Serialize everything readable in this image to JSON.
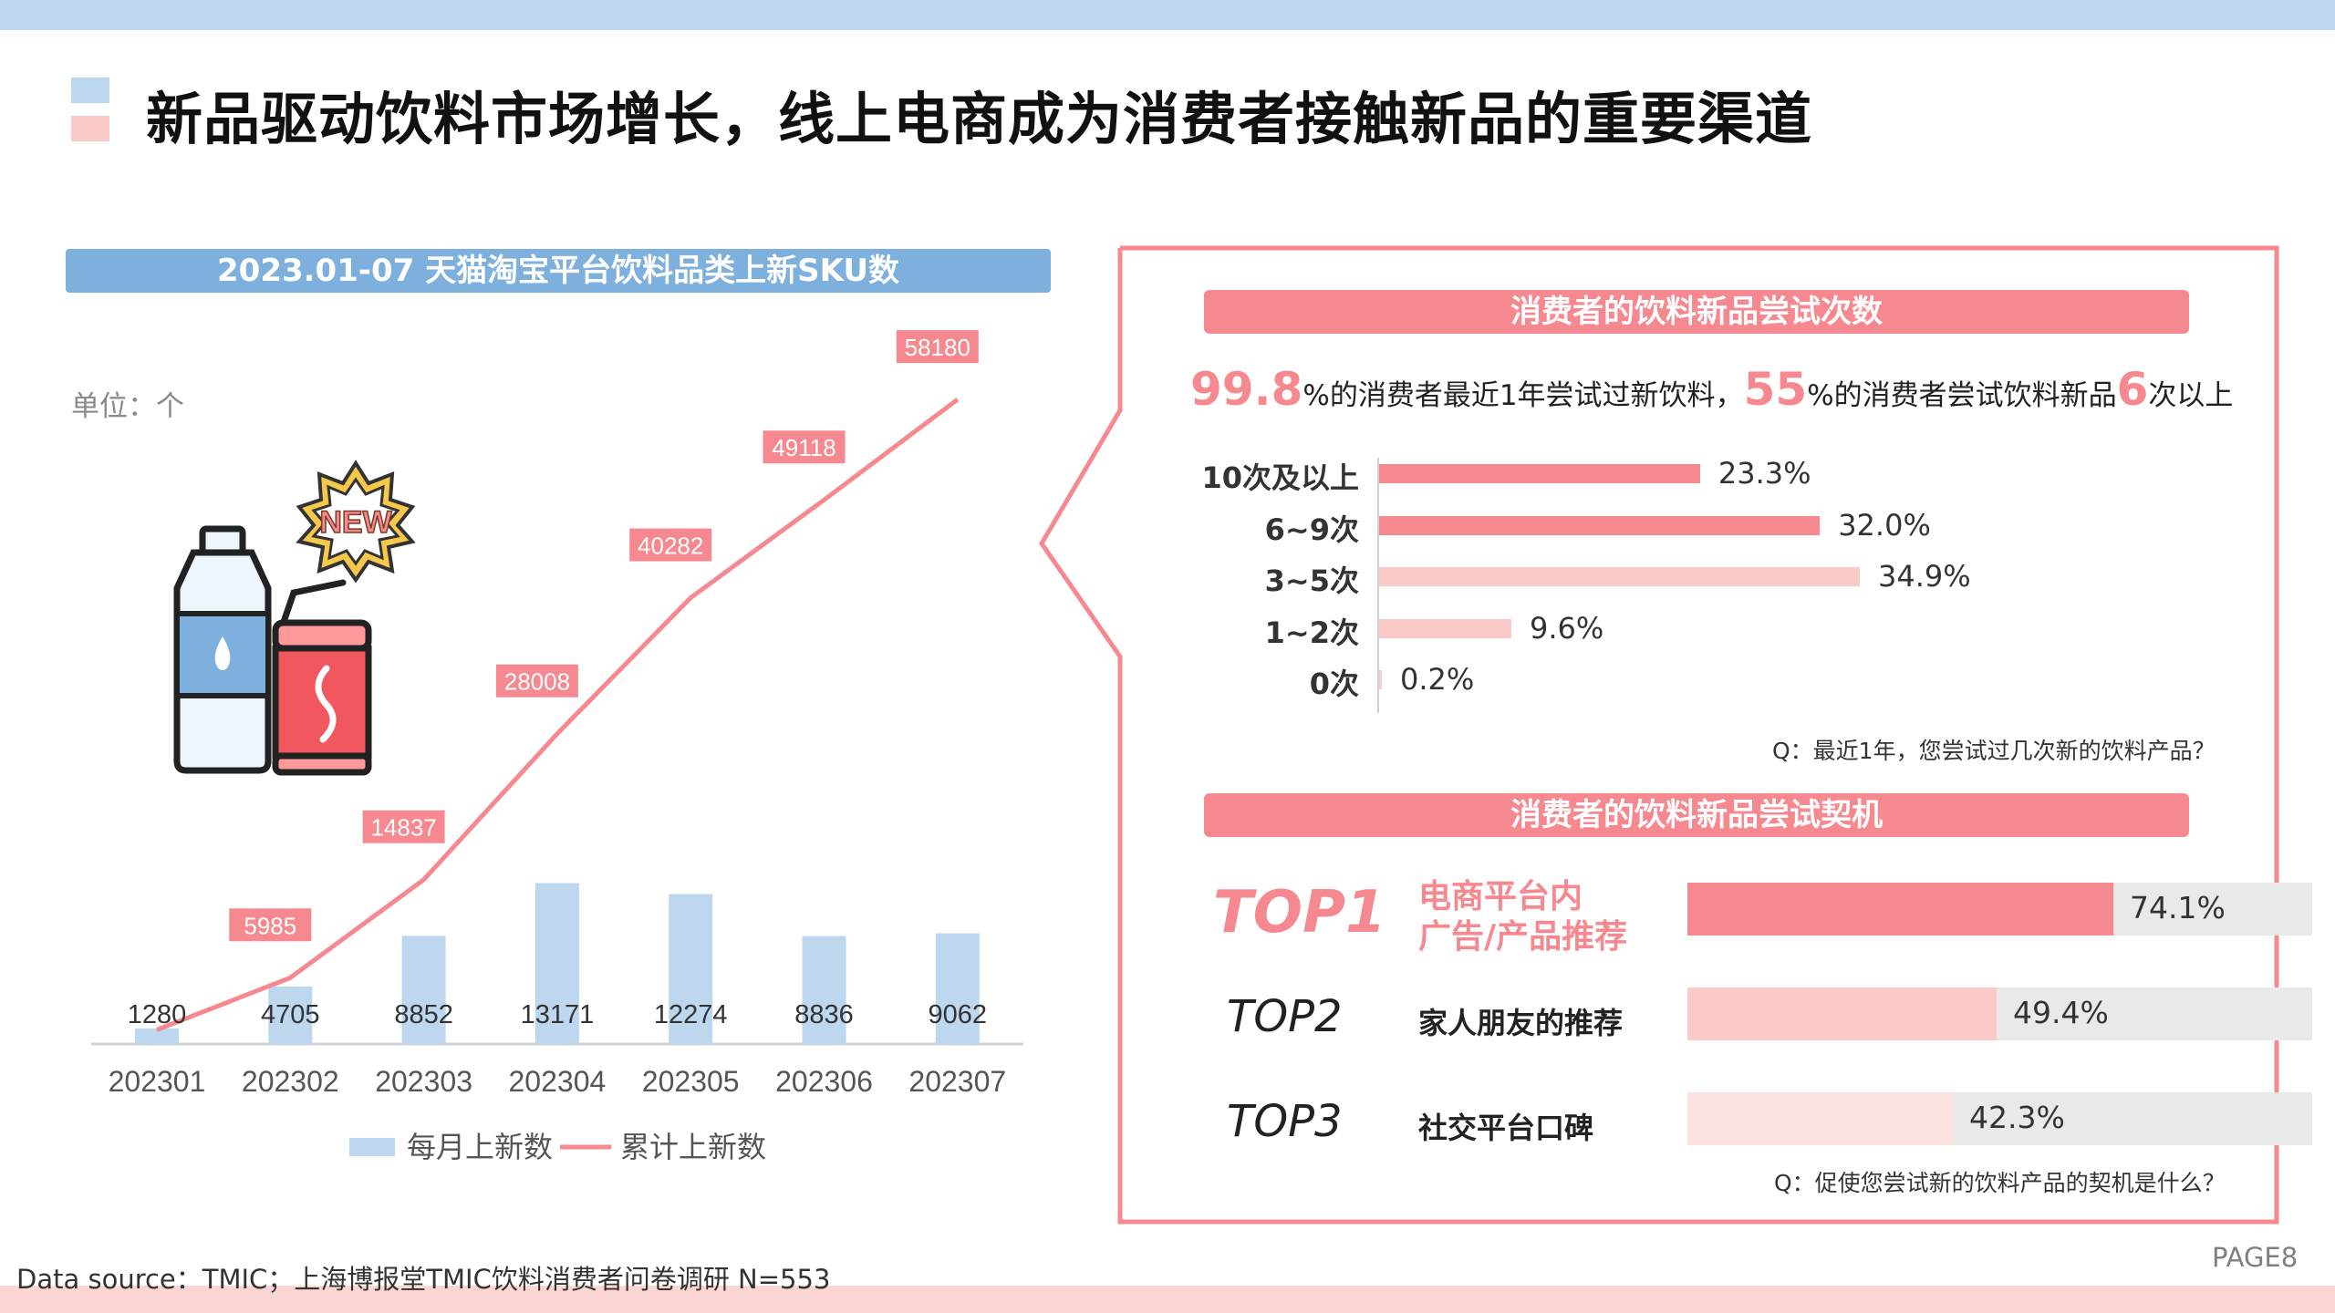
{
  "title": "新品驱动饮料市场增长，线上电商成为消费者接触新品的重要渠道",
  "left": {
    "header": "2023.01-07 天猫淘宝平台饮料品类上新SKU数",
    "unit": "单位：个",
    "badge_text": "NEW"
  },
  "chart_data": [
    {
      "type": "bar",
      "title": "2023.01-07 天猫淘宝平台饮料品类上新SKU数",
      "unit": "单位：个",
      "categories": [
        "202301",
        "202302",
        "202303",
        "202304",
        "202305",
        "202306",
        "202307"
      ],
      "series": [
        {
          "name": "每月上新数",
          "type": "bar",
          "color": "#bdd7ee",
          "values": [
            1280,
            4705,
            8852,
            13171,
            12274,
            8836,
            9062
          ]
        },
        {
          "name": "累计上新数",
          "type": "line",
          "color": "#f6888f",
          "values": [
            1280,
            5985,
            14837,
            28008,
            40282,
            49118,
            58180
          ]
        }
      ],
      "legend": "bottom",
      "grid": false
    },
    {
      "type": "bar",
      "orientation": "horizontal",
      "title": "消费者的饮料新品尝试次数",
      "categories": [
        "10次及以上",
        "6~9次",
        "3~5次",
        "1~2次",
        "0次"
      ],
      "values": [
        23.3,
        32.0,
        34.9,
        9.6,
        0.2
      ],
      "value_labels": [
        "23.3%",
        "32.0%",
        "34.9%",
        "9.6%",
        "0.2%"
      ],
      "colors": [
        "#f6888f",
        "#f6888f",
        "#fcc9c9",
        "#fcc9c9",
        "#fcc9c9"
      ]
    },
    {
      "type": "bar",
      "orientation": "horizontal",
      "title": "消费者的饮料新品尝试契机",
      "categories": [
        "电商平台内广告/产品推荐",
        "家人朋友的推荐",
        "社交平台口碑"
      ],
      "values": [
        74.1,
        49.4,
        42.3
      ],
      "value_labels": [
        "74.1%",
        "49.4%",
        "42.3%"
      ],
      "colors": [
        "#f6888f",
        "#fcc9c9",
        "#fde2e2"
      ]
    }
  ],
  "right": {
    "header1": "消费者的饮料新品尝试次数",
    "stat": {
      "n1": "99.8",
      "t1": "%的消费者最近1年尝试过新饮料，",
      "n2": "55",
      "t2": "%的消费者尝试饮料新品",
      "n3": "6",
      "t3": "次以上"
    },
    "q1": "Q：最近1年，您尝试过几次新的饮料产品？",
    "header2": "消费者的饮料新品尝试契机",
    "tops": [
      {
        "rank": "TOP1",
        "line1": "电商平台内",
        "line2": "广告/产品推荐",
        "value": 74.1,
        "label": "74.1%"
      },
      {
        "rank": "TOP2",
        "line1": "家人朋友的推荐",
        "value": 49.4,
        "label": "49.4%"
      },
      {
        "rank": "TOP3",
        "line1": "社交平台口碑",
        "value": 42.3,
        "label": "42.3%"
      }
    ],
    "q2": "Q：促使您尝试新的饮料产品的契机是什么？"
  },
  "footer": {
    "source": "Data source：TMIC；上海博报堂TMIC饮料消费者问卷调研 N=553",
    "page": "PAGE8"
  },
  "colors": {
    "pink": "#f6888f",
    "light_pink": "#fcc9c9",
    "blue": "#bdd7ee",
    "header_blue": "#7eb0de"
  }
}
